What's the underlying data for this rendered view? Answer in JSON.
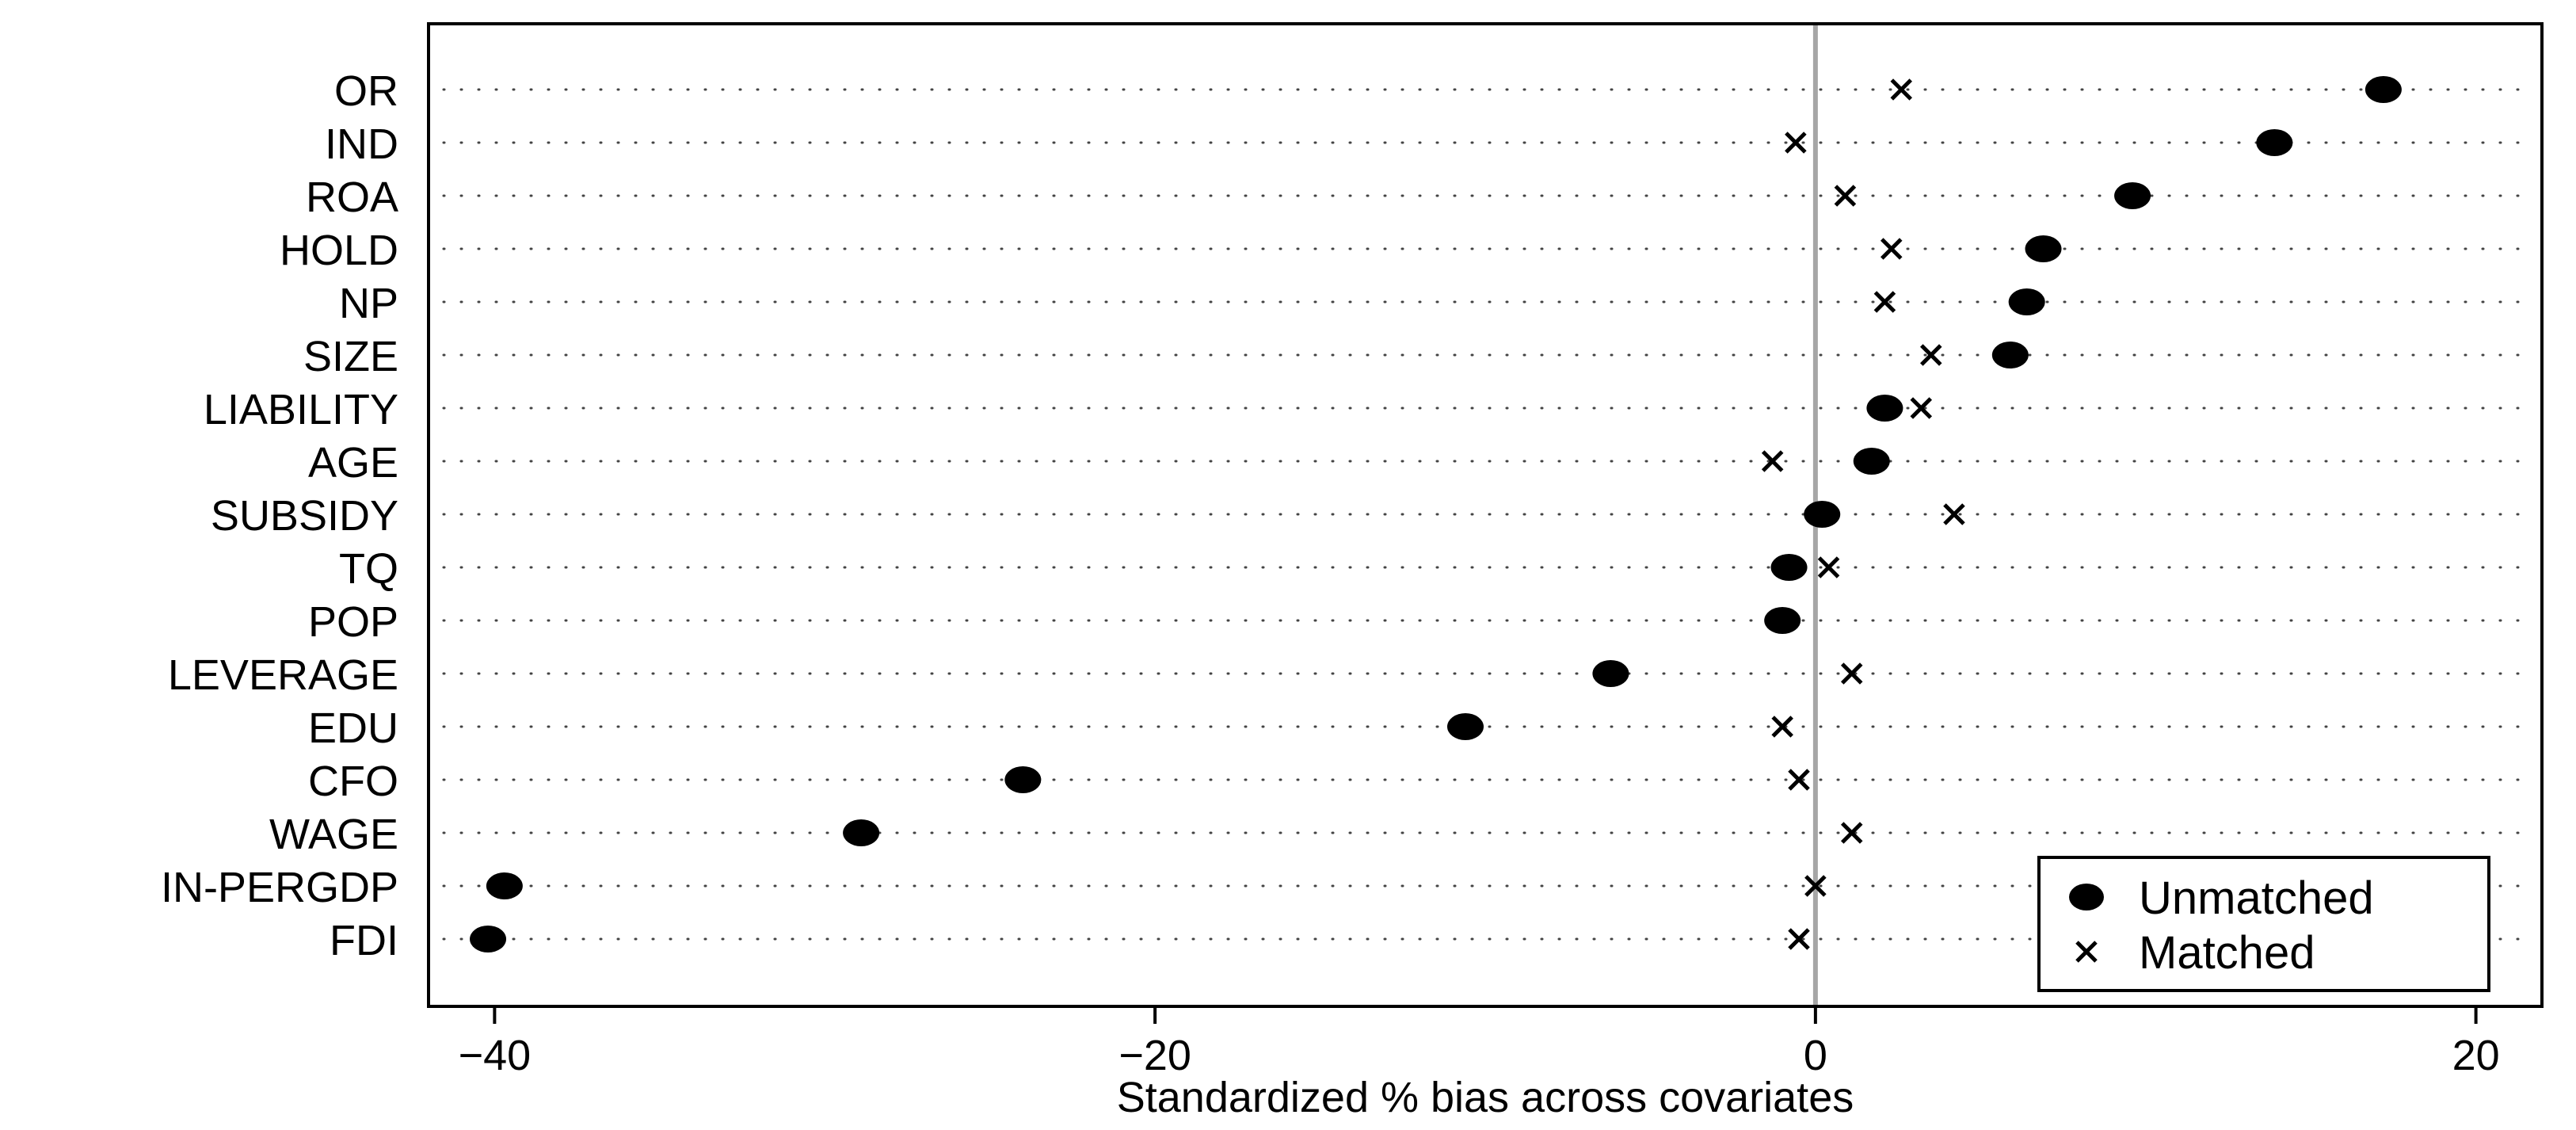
{
  "chart_data": {
    "type": "scatter",
    "title": "",
    "xlabel": "Standardized % bias across covariates",
    "ylabel": "",
    "xlim": [
      -42,
      22
    ],
    "xticks": [
      -40,
      -20,
      0,
      20
    ],
    "reference_line": 0,
    "grid": "dotted horizontal lines",
    "legend_position": "bottom-right",
    "categories": [
      "OR",
      "IND",
      "ROA",
      "HOLD",
      "NP",
      "SIZE",
      "LIABILITY",
      "AGE",
      "SUBSIDY",
      "TQ",
      "POP",
      "LEVERAGE",
      "EDU",
      "CFO",
      "WAGE",
      "IN-PERGDP",
      "FDI"
    ],
    "series": [
      {
        "name": "Unmatched",
        "marker": "filled-circle",
        "values": [
          17.2,
          13.9,
          9.6,
          6.9,
          6.4,
          5.9,
          2.1,
          1.7,
          0.2,
          -0.8,
          -1.0,
          -6.2,
          -10.6,
          -24.0,
          -28.9,
          -39.7,
          -40.2
        ]
      },
      {
        "name": "Matched",
        "marker": "x",
        "values": [
          2.6,
          -0.6,
          0.9,
          2.3,
          2.1,
          3.5,
          3.2,
          -1.3,
          4.2,
          0.4,
          null,
          1.1,
          -1.0,
          -0.5,
          1.1,
          0.0,
          -0.5
        ]
      }
    ]
  },
  "colors": {
    "marker": "#000000",
    "zero_line": "#a6a6a6",
    "grid": "#444444",
    "background": "#ffffff"
  }
}
